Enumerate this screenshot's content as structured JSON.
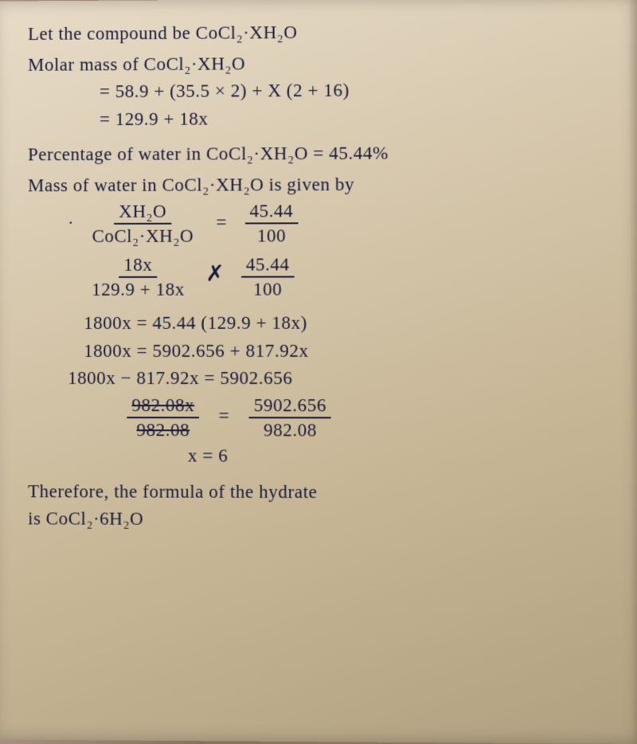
{
  "text_color": "#1a1a3a",
  "font_family": "Segoe Script, Comic Sans MS, cursive",
  "paper_bg_start": "#e8dcc8",
  "paper_bg_end": "#b0a080",
  "lines": {
    "l1": "Let the compound be CoCl₂·XH₂O",
    "l2": "Molar mass of CoCl₂·XH₂O",
    "l3": "= 58.9 + (35.5 × 2) + X (2 + 16)",
    "l4": "= 129.9 + 18x",
    "l5": "Percentage of water in CoCl₂·XH₂O = 45.44%",
    "l6": "Mass of water in CoCl₂·XH₂O is given by",
    "frac1_num": "XH₂O",
    "frac1_den": "CoCl₂·XH₂O",
    "eq": "=",
    "frac2_num": "45.44",
    "frac2_den": "100",
    "frac3_num": "18x",
    "frac3_den": "129.9 + 18x",
    "cross": "✗",
    "l7": "1800x = 45.44 (129.9 + 18x)",
    "l8": "1800x = 5902.656 + 817.92x",
    "l9": "1800x − 817.92x = 5902.656",
    "frac4_num": "982.08x",
    "frac4_den": "982.08",
    "frac5_num": "5902.656",
    "frac5_den": "982.08",
    "l10": "x = 6",
    "l11": "Therefore, the formula of the hydrate",
    "l12": "is CoCl₂·6H₂O"
  }
}
